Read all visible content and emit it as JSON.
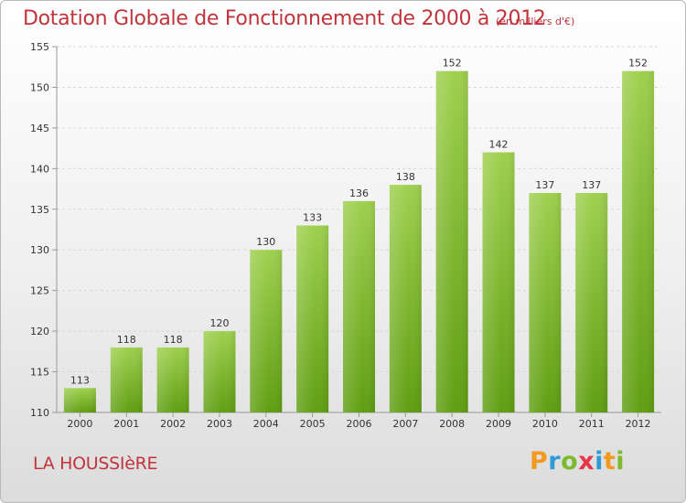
{
  "header": {
    "title": "Dotation Globale de Fonctionnement de 2000 à 2012",
    "unit_note": "(en milliers d'€)"
  },
  "footer": {
    "commune": "LA HOUSSIèRE",
    "logo_letters": [
      "P",
      "r",
      "o",
      "x",
      "i",
      "t",
      "i"
    ],
    "logo_colors": [
      "#f29a1f",
      "#2e9bd6",
      "#7dbb2e",
      "#e8344a",
      "#2e9bd6",
      "#f29a1f",
      "#7dbb2e"
    ]
  },
  "colors": {
    "title": "#c0343c",
    "bar_top": "#9fd04f",
    "bar_bottom": "#5f9e12",
    "grid": "#d8d8d8",
    "axis": "#999999",
    "text": "#333333"
  },
  "chart_data": {
    "type": "bar",
    "title": "Dotation Globale de Fonctionnement de 2000 à 2012",
    "subtitle": "(en milliers d'€)",
    "xlabel": "",
    "ylabel": "",
    "categories": [
      "2000",
      "2001",
      "2002",
      "2003",
      "2004",
      "2005",
      "2006",
      "2007",
      "2008",
      "2009",
      "2010",
      "2011",
      "2012"
    ],
    "values": [
      113,
      118,
      118,
      120,
      130,
      133,
      136,
      138,
      152,
      142,
      137,
      137,
      152
    ],
    "ylim": [
      110,
      155
    ],
    "yticks": [
      110,
      115,
      120,
      125,
      130,
      135,
      140,
      145,
      150,
      155
    ],
    "grid": true,
    "data_labels": true
  }
}
